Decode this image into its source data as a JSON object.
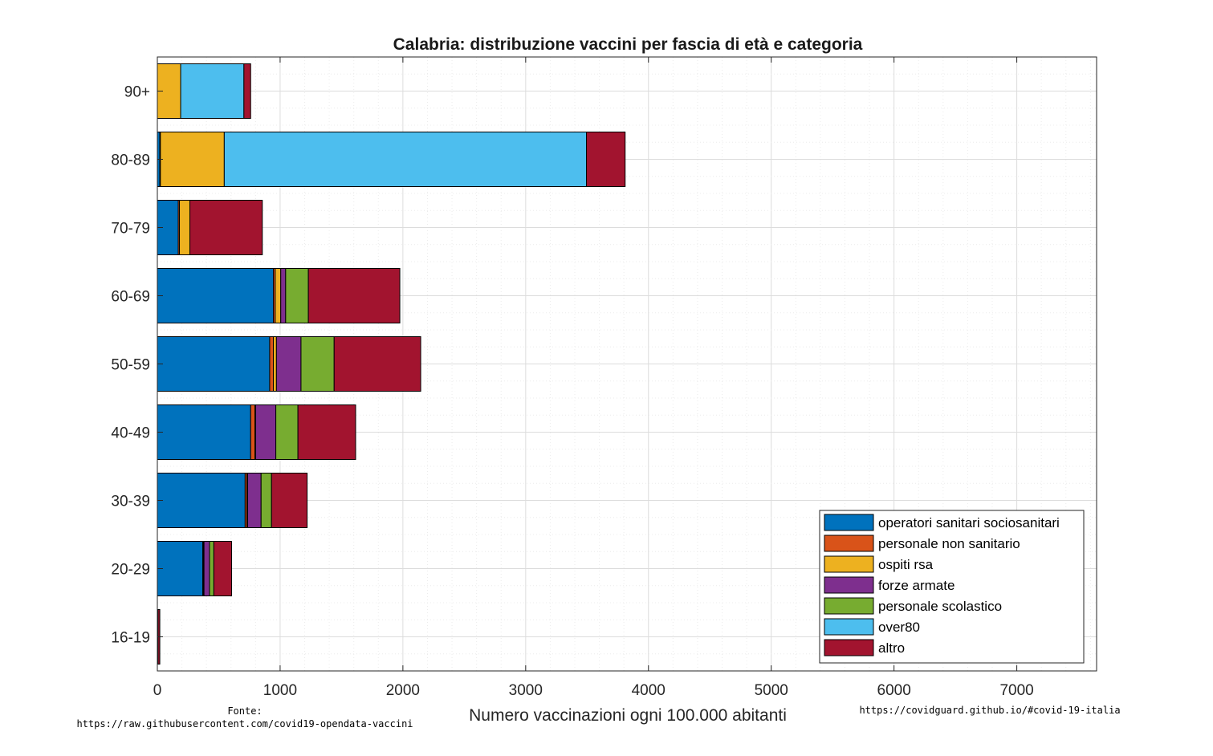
{
  "chart_data": {
    "type": "bar",
    "orientation": "horizontal",
    "stacked": true,
    "title": "Calabria: distribuzione vaccini per fascia di età e categoria",
    "xlabel": "Numero vaccinazioni ogni 100.000 abitanti",
    "ylabel": "",
    "xlim": [
      0,
      7650
    ],
    "xticks": [
      0,
      1000,
      2000,
      3000,
      4000,
      5000,
      6000,
      7000
    ],
    "grid": true,
    "minor_grid": true,
    "legend_position": "bottom-right",
    "categories": [
      "90+",
      "80-89",
      "70-79",
      "60-69",
      "50-59",
      "40-49",
      "30-39",
      "20-29",
      "16-19"
    ],
    "series": [
      {
        "name": "operatori sanitari sociosanitari",
        "color": "#0072BD",
        "values": [
          0,
          20,
          170,
          945,
          915,
          760,
          715,
          370,
          0
        ]
      },
      {
        "name": "personale non sanitario",
        "color": "#D95319",
        "values": [
          0,
          5,
          10,
          15,
          30,
          35,
          15,
          5,
          5
        ]
      },
      {
        "name": "ospiti rsa",
        "color": "#EDB120",
        "values": [
          190,
          520,
          85,
          45,
          25,
          5,
          5,
          5,
          0
        ]
      },
      {
        "name": "forze armate",
        "color": "#7E2F8E",
        "values": [
          0,
          0,
          0,
          40,
          200,
          165,
          110,
          45,
          0
        ]
      },
      {
        "name": "personale scolastico",
        "color": "#77AC30",
        "values": [
          0,
          0,
          0,
          185,
          270,
          180,
          85,
          35,
          0
        ]
      },
      {
        "name": "over80",
        "color": "#4DBEEE",
        "values": [
          515,
          2950,
          0,
          0,
          0,
          0,
          0,
          0,
          0
        ]
      },
      {
        "name": "altro",
        "color": "#A2142F",
        "values": [
          55,
          315,
          590,
          745,
          705,
          470,
          290,
          145,
          15
        ]
      }
    ]
  },
  "source_label": "Fonte:",
  "source_url": "https://raw.githubusercontent.com/covid19-opendata-vaccini",
  "site_url": "https://covidguard.github.io/#covid-19-italia"
}
